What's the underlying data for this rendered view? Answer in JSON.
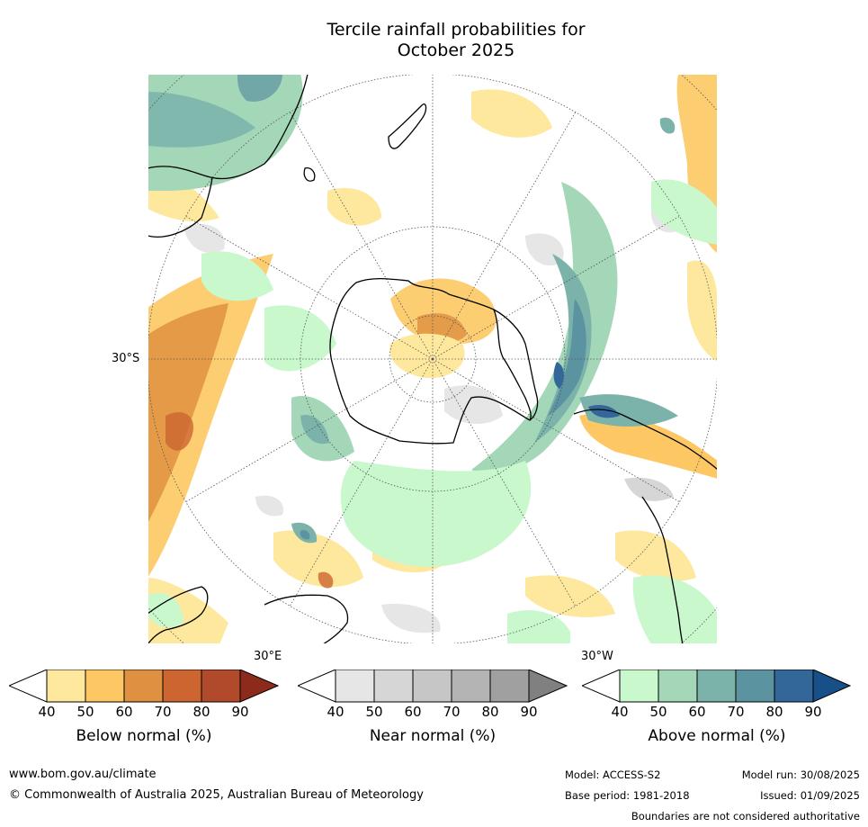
{
  "title": {
    "line1": "Tercile rainfall probabilities for",
    "line2": "October 2025"
  },
  "map": {
    "labels": {
      "lat_30s": "30°S",
      "lon_30e": "30°E",
      "lon_30w": "30°W"
    },
    "colors": {
      "ocean": "#ffffff",
      "coast": "#000000",
      "graticule": "#555555"
    }
  },
  "colorbars": [
    {
      "title": "Below normal (%)",
      "ticks": [
        "40",
        "50",
        "60",
        "70",
        "80",
        "90"
      ],
      "colors": [
        "#ffffff",
        "#fee89d",
        "#fdc863",
        "#df9040",
        "#cc6530",
        "#b04a2a",
        "#8c2b1c"
      ]
    },
    {
      "title": "Near normal (%)",
      "ticks": [
        "40",
        "50",
        "60",
        "70",
        "80",
        "90"
      ],
      "colors": [
        "#ffffff",
        "#e6e6e6",
        "#d6d6d6",
        "#c6c6c6",
        "#b4b4b4",
        "#a0a0a0",
        "#808080"
      ]
    },
    {
      "title": "Above normal (%)",
      "ticks": [
        "40",
        "50",
        "60",
        "70",
        "80",
        "90"
      ],
      "colors": [
        "#ffffff",
        "#c8f8cc",
        "#a4d7b8",
        "#7bb3aa",
        "#5b93a0",
        "#336699",
        "#174f88"
      ]
    }
  ],
  "footer": {
    "url": "www.bom.gov.au/climate",
    "copyright": "© Commonwealth of Australia 2025, Australian Bureau of Meteorology",
    "model": "Model: ACCESS-S2",
    "model_run": "Model run: 30/08/2025",
    "base_period": "Base period: 1981-2018",
    "issued": "Issued: 01/09/2025",
    "disclaimer": "Boundaries are not considered authoritative"
  }
}
